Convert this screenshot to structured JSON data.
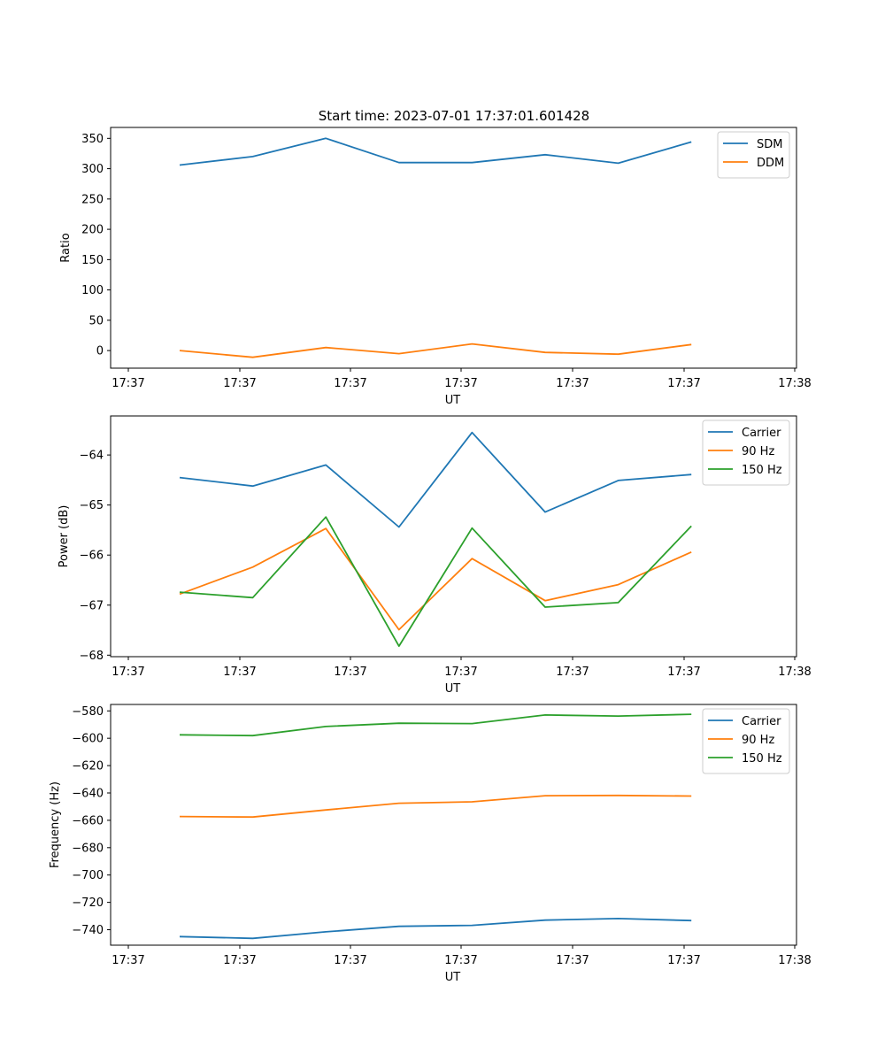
{
  "figure": {
    "title": "Start time: 2023-07-01 17:37:01.601428"
  },
  "colors": {
    "blue": "#1f77b4",
    "orange": "#ff7f0e",
    "green": "#2ca02c"
  },
  "chart_data": [
    {
      "type": "line",
      "title": "Start time: 2023-07-01 17:37:01.601428",
      "xlabel": "UT",
      "ylabel": "Ratio",
      "xtick_labels": [
        "17:37",
        "17:37",
        "17:37",
        "17:37",
        "17:37",
        "17:37",
        "17:38"
      ],
      "yticks": [
        0,
        50,
        100,
        150,
        200,
        250,
        300,
        350
      ],
      "ylim": [
        -29,
        368
      ],
      "legend_loc": "upper right",
      "grid": false,
      "series": [
        {
          "name": "SDM",
          "color": "#1f77b4",
          "values": [
            306,
            320,
            350,
            310,
            310,
            323,
            309,
            344
          ]
        },
        {
          "name": "DDM",
          "color": "#ff7f0e",
          "values": [
            0,
            -11,
            5,
            -5,
            11,
            -3,
            -6,
            10
          ]
        }
      ]
    },
    {
      "type": "line",
      "xlabel": "UT",
      "ylabel": "Power (dB)",
      "xtick_labels": [
        "17:37",
        "17:37",
        "17:37",
        "17:37",
        "17:37",
        "17:37",
        "17:38"
      ],
      "yticks": [
        -68,
        -67,
        -66,
        -65,
        -64
      ],
      "ylim": [
        -68.03,
        -63.22
      ],
      "legend_loc": "upper right",
      "grid": false,
      "series": [
        {
          "name": "Carrier",
          "color": "#1f77b4",
          "values": [
            -64.45,
            -64.62,
            -64.2,
            -65.44,
            -63.55,
            -65.14,
            -64.51,
            -64.39
          ]
        },
        {
          "name": "90 Hz",
          "color": "#ff7f0e",
          "values": [
            -66.78,
            -66.24,
            -65.47,
            -67.49,
            -66.07,
            -66.91,
            -66.59,
            -65.94
          ]
        },
        {
          "name": "150 Hz",
          "color": "#2ca02c",
          "values": [
            -66.74,
            -66.85,
            -65.24,
            -67.82,
            -65.46,
            -67.04,
            -66.95,
            -65.42
          ]
        }
      ]
    },
    {
      "type": "line",
      "xlabel": "UT",
      "ylabel": "Frequency (Hz)",
      "xtick_labels": [
        "17:37",
        "17:37",
        "17:37",
        "17:37",
        "17:37",
        "17:37",
        "17:38"
      ],
      "yticks": [
        -740,
        -720,
        -700,
        -680,
        -660,
        -640,
        -620,
        -600,
        -580
      ],
      "ylim": [
        -751.3,
        -575.3
      ],
      "legend_loc": "upper right",
      "grid": false,
      "series": [
        {
          "name": "Carrier",
          "color": "#1f77b4",
          "values": [
            -745,
            -746.3,
            -741.5,
            -737.5,
            -736.8,
            -733,
            -731.8,
            -733.3
          ]
        },
        {
          "name": "90 Hz",
          "color": "#ff7f0e",
          "values": [
            -657.2,
            -657.6,
            -652.4,
            -647.5,
            -646.5,
            -642,
            -641.8,
            -642.3
          ]
        },
        {
          "name": "150 Hz",
          "color": "#2ca02c",
          "values": [
            -597.5,
            -598.1,
            -591.4,
            -589,
            -589.3,
            -583,
            -583.8,
            -582.5
          ]
        }
      ]
    }
  ]
}
